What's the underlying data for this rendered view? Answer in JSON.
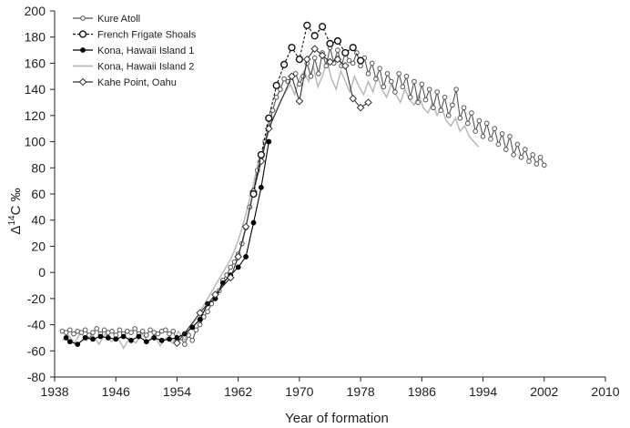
{
  "chart_data": {
    "type": "line",
    "xlabel": "Year of formation",
    "ylabel_parts": [
      "Δ",
      "14",
      "C ‰"
    ],
    "xlim": [
      1938,
      2010
    ],
    "ylim": [
      -80,
      200
    ],
    "x_ticks": [
      1938,
      1946,
      1954,
      1962,
      1970,
      1978,
      1986,
      1994,
      2002,
      2010
    ],
    "y_ticks": [
      -80,
      -60,
      -40,
      -20,
      0,
      20,
      40,
      60,
      80,
      100,
      120,
      140,
      160,
      180,
      200
    ],
    "grid": false,
    "legend_position": "top-left",
    "series": [
      {
        "name": "Kure Atoll",
        "color": "#555555",
        "style": "solid",
        "marker": "small-open-circle",
        "points": [
          [
            1939,
            -45
          ],
          [
            1939.5,
            -46
          ],
          [
            1940,
            -44
          ],
          [
            1940.5,
            -47
          ],
          [
            1941,
            -45
          ],
          [
            1941.5,
            -46
          ],
          [
            1942,
            -44
          ],
          [
            1942.5,
            -48
          ],
          [
            1943,
            -46
          ],
          [
            1943.5,
            -43
          ],
          [
            1944,
            -47
          ],
          [
            1944.5,
            -44
          ],
          [
            1945,
            -46
          ],
          [
            1945.5,
            -45
          ],
          [
            1946,
            -48
          ],
          [
            1946.5,
            -44
          ],
          [
            1947,
            -47
          ],
          [
            1947.5,
            -45
          ],
          [
            1948,
            -46
          ],
          [
            1948.5,
            -43
          ],
          [
            1949,
            -47
          ],
          [
            1949.5,
            -45
          ],
          [
            1950,
            -48
          ],
          [
            1950.5,
            -44
          ],
          [
            1951,
            -46
          ],
          [
            1951.5,
            -47
          ],
          [
            1952,
            -45
          ],
          [
            1952.5,
            -44
          ],
          [
            1953,
            -47
          ],
          [
            1953.5,
            -45
          ],
          [
            1954,
            -52
          ],
          [
            1954.5,
            -50
          ],
          [
            1955,
            -55
          ],
          [
            1955.5,
            -48
          ],
          [
            1956,
            -52
          ],
          [
            1956.5,
            -44
          ],
          [
            1957,
            -40
          ],
          [
            1957.5,
            -34
          ],
          [
            1958,
            -30
          ],
          [
            1958.5,
            -24
          ],
          [
            1959,
            -20
          ],
          [
            1959.5,
            -14
          ],
          [
            1960,
            -6
          ],
          [
            1960.5,
            -2
          ],
          [
            1961,
            4
          ],
          [
            1961.5,
            8
          ],
          [
            1962,
            14
          ],
          [
            1962.5,
            22
          ],
          [
            1963,
            34
          ],
          [
            1963.5,
            50
          ],
          [
            1964,
            62
          ],
          [
            1964.5,
            78
          ],
          [
            1965,
            88
          ],
          [
            1965.5,
            100
          ],
          [
            1966,
            112
          ],
          [
            1966.5,
            124
          ],
          [
            1967,
            134
          ],
          [
            1967.5,
            140
          ],
          [
            1968,
            148
          ],
          [
            1968.5,
            146
          ],
          [
            1969,
            150
          ],
          [
            1969.5,
            152
          ],
          [
            1970,
            144
          ],
          [
            1970.5,
            150
          ],
          [
            1971,
            160
          ],
          [
            1971.5,
            150
          ],
          [
            1972,
            164
          ],
          [
            1972.5,
            152
          ],
          [
            1973,
            168
          ],
          [
            1973.5,
            158
          ],
          [
            1974,
            172
          ],
          [
            1974.5,
            160
          ],
          [
            1975,
            170
          ],
          [
            1975.5,
            158
          ],
          [
            1976,
            168
          ],
          [
            1976.5,
            162
          ],
          [
            1977,
            160
          ],
          [
            1977.5,
            168
          ],
          [
            1978,
            158
          ],
          [
            1978.5,
            164
          ],
          [
            1979,
            152
          ],
          [
            1979.5,
            160
          ],
          [
            1980,
            148
          ],
          [
            1980.5,
            156
          ],
          [
            1981,
            142
          ],
          [
            1981.5,
            152
          ],
          [
            1982,
            146
          ],
          [
            1982.5,
            138
          ],
          [
            1983,
            152
          ],
          [
            1983.5,
            142
          ],
          [
            1984,
            150
          ],
          [
            1984.5,
            134
          ],
          [
            1985,
            146
          ],
          [
            1985.5,
            130
          ],
          [
            1986,
            144
          ],
          [
            1986.5,
            132
          ],
          [
            1987,
            140
          ],
          [
            1987.5,
            126
          ],
          [
            1988,
            138
          ],
          [
            1988.5,
            124
          ],
          [
            1989,
            134
          ],
          [
            1989.5,
            120
          ],
          [
            1990,
            128
          ],
          [
            1990.5,
            140
          ],
          [
            1991,
            118
          ],
          [
            1991.5,
            126
          ],
          [
            1992,
            114
          ],
          [
            1992.5,
            122
          ],
          [
            1993,
            108
          ],
          [
            1993.5,
            116
          ],
          [
            1994,
            104
          ],
          [
            1994.5,
            114
          ],
          [
            1995,
            102
          ],
          [
            1995.5,
            110
          ],
          [
            1996,
            98
          ],
          [
            1996.5,
            106
          ],
          [
            1997,
            94
          ],
          [
            1997.5,
            104
          ],
          [
            1998,
            90
          ],
          [
            1998.5,
            98
          ],
          [
            1999,
            88
          ],
          [
            1999.5,
            94
          ],
          [
            2000,
            85
          ],
          [
            2000.5,
            90
          ],
          [
            2001,
            83
          ],
          [
            2001.5,
            88
          ],
          [
            2002,
            82
          ]
        ]
      },
      {
        "name": "French Frigate Shoals",
        "color": "#111111",
        "style": "dashed",
        "marker": "large-open-circle",
        "points": [
          [
            1964,
            60
          ],
          [
            1965,
            90
          ],
          [
            1966,
            118
          ],
          [
            1967,
            143
          ],
          [
            1968,
            159
          ],
          [
            1969,
            172
          ],
          [
            1970,
            163
          ],
          [
            1971,
            189
          ],
          [
            1972,
            181
          ],
          [
            1973,
            188
          ],
          [
            1974,
            175
          ],
          [
            1975,
            177
          ],
          [
            1976,
            168
          ],
          [
            1977,
            172
          ],
          [
            1978,
            162
          ]
        ]
      },
      {
        "name": "Kona, Hawaii Island 1",
        "color": "#000000",
        "style": "solid",
        "marker": "filled-circle",
        "points": [
          [
            1939.5,
            -50
          ],
          [
            1940,
            -53
          ],
          [
            1941,
            -55
          ],
          [
            1942,
            -50
          ],
          [
            1943,
            -51
          ],
          [
            1944,
            -49
          ],
          [
            1945,
            -50
          ],
          [
            1946,
            -51
          ],
          [
            1947,
            -49
          ],
          [
            1948,
            -52
          ],
          [
            1949,
            -49
          ],
          [
            1950,
            -53
          ],
          [
            1951,
            -50
          ],
          [
            1952,
            -52
          ],
          [
            1953,
            -51
          ],
          [
            1954,
            -50
          ],
          [
            1955,
            -47
          ],
          [
            1956,
            -42
          ],
          [
            1957,
            -36
          ],
          [
            1958,
            -24
          ],
          [
            1959,
            -20
          ],
          [
            1960,
            -8
          ],
          [
            1961,
            -2
          ],
          [
            1962,
            4
          ],
          [
            1963,
            12
          ],
          [
            1964,
            38
          ],
          [
            1965,
            65
          ],
          [
            1966,
            100
          ]
        ]
      },
      {
        "name": "Kona, Hawaii Island 2",
        "color": "#b9b9b9",
        "style": "solid",
        "marker": "none",
        "points": [
          [
            1939,
            -52
          ],
          [
            1939.8,
            -48
          ],
          [
            1940.6,
            -54
          ],
          [
            1941.4,
            -46
          ],
          [
            1942.2,
            -52
          ],
          [
            1943,
            -48
          ],
          [
            1943.8,
            -55
          ],
          [
            1944.6,
            -47
          ],
          [
            1945.4,
            -53
          ],
          [
            1946.2,
            -49
          ],
          [
            1947,
            -58
          ],
          [
            1947.8,
            -50
          ],
          [
            1948.6,
            -54
          ],
          [
            1949.4,
            -47
          ],
          [
            1950.2,
            -53
          ],
          [
            1951,
            -48
          ],
          [
            1951.8,
            -56
          ],
          [
            1952.6,
            -50
          ],
          [
            1953.4,
            -54
          ],
          [
            1954.2,
            -45
          ],
          [
            1955,
            -52
          ],
          [
            1955.6,
            -44
          ],
          [
            1956.2,
            -38
          ],
          [
            1956.8,
            -32
          ],
          [
            1957.4,
            -26
          ],
          [
            1958,
            -20
          ],
          [
            1958.6,
            -14
          ],
          [
            1959.2,
            -8
          ],
          [
            1959.8,
            -2
          ],
          [
            1960.4,
            4
          ],
          [
            1961,
            10
          ],
          [
            1961.6,
            18
          ],
          [
            1962.2,
            28
          ],
          [
            1962.8,
            40
          ],
          [
            1963.4,
            54
          ],
          [
            1964,
            68
          ],
          [
            1964.6,
            84
          ],
          [
            1965.2,
            94
          ],
          [
            1965.8,
            104
          ],
          [
            1966.4,
            116
          ],
          [
            1967,
            124
          ],
          [
            1967.6,
            132
          ],
          [
            1968.2,
            138
          ],
          [
            1968.8,
            144
          ],
          [
            1969.4,
            136
          ],
          [
            1970,
            148
          ],
          [
            1970.6,
            154
          ],
          [
            1971.2,
            146
          ],
          [
            1971.8,
            158
          ],
          [
            1972.4,
            142
          ],
          [
            1973,
            150
          ],
          [
            1973.6,
            162
          ],
          [
            1974.2,
            148
          ],
          [
            1974.8,
            140
          ],
          [
            1975.4,
            154
          ],
          [
            1976,
            146
          ],
          [
            1976.6,
            138
          ],
          [
            1977.2,
            150
          ],
          [
            1977.8,
            142
          ],
          [
            1978.4,
            136
          ],
          [
            1979,
            146
          ],
          [
            1979.6,
            138
          ],
          [
            1980.2,
            150
          ],
          [
            1980.8,
            140
          ],
          [
            1981.4,
            134
          ],
          [
            1982,
            144
          ],
          [
            1982.6,
            136
          ],
          [
            1983.2,
            130
          ],
          [
            1983.8,
            140
          ],
          [
            1984.4,
            132
          ],
          [
            1985,
            128
          ],
          [
            1985.6,
            136
          ],
          [
            1986.2,
            126
          ],
          [
            1986.8,
            122
          ],
          [
            1987.4,
            130
          ],
          [
            1988,
            120
          ],
          [
            1988.6,
            126
          ],
          [
            1989.2,
            116
          ],
          [
            1989.8,
            112
          ],
          [
            1990.4,
            118
          ],
          [
            1991,
            108
          ],
          [
            1991.6,
            112
          ],
          [
            1992.2,
            104
          ],
          [
            1992.8,
            100
          ],
          [
            1993.4,
            96
          ]
        ]
      },
      {
        "name": "Kahe Point, Oahu",
        "color": "#333333",
        "style": "solid",
        "marker": "open-diamond",
        "points": [
          [
            1954,
            -54
          ],
          [
            1957,
            -31
          ],
          [
            1959,
            -17
          ],
          [
            1961,
            -4
          ],
          [
            1962,
            12
          ],
          [
            1963,
            35
          ],
          [
            1964,
            62
          ],
          [
            1965,
            85
          ],
          [
            1966,
            110
          ],
          [
            1969,
            150
          ],
          [
            1970,
            131
          ],
          [
            1971,
            163
          ],
          [
            1972,
            171
          ],
          [
            1973,
            166
          ],
          [
            1974,
            161
          ],
          [
            1975,
            163
          ],
          [
            1976,
            158
          ],
          [
            1977,
            133
          ],
          [
            1978,
            126
          ],
          [
            1979,
            130
          ]
        ]
      }
    ]
  }
}
